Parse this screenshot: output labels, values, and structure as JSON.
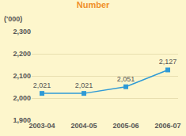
{
  "chart_data": {
    "type": "line",
    "title": "Number",
    "y_label": "('000)",
    "categories": [
      "2003-04",
      "2004-05",
      "2005-06",
      "2006-07"
    ],
    "values": [
      2021,
      2021,
      2051,
      2127
    ],
    "value_labels": [
      "2,021",
      "2,021",
      "2,051",
      "2,127"
    ],
    "data_labels": true,
    "color": "#2f9ad6",
    "marker": "square",
    "ylim": [
      1900,
      2300
    ],
    "yticks": [
      {
        "value": 1900,
        "label": "1,900"
      },
      {
        "value": 2000,
        "label": "2,000"
      },
      {
        "value": 2100,
        "label": "2,100"
      },
      {
        "value": 2200,
        "label": "2,200"
      },
      {
        "value": 2300,
        "label": "2,300"
      }
    ],
    "grid": true
  }
}
